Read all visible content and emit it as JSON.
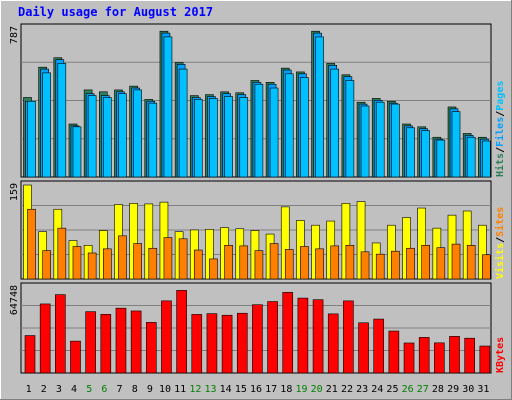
{
  "title": "Daily usage for August 2017",
  "colors": {
    "panel_bg": "#c0c0c0",
    "chart_bg": "#c0c0c0",
    "title": "#0000ff",
    "hits": "#2e7d5b",
    "files": "#00a0ff",
    "pages": "#00c0ff",
    "visits": "#ff8000",
    "sites": "#ffff00",
    "kbytes": "#ff0000",
    "weekday_label": "#000000",
    "weekend_label": "#008000"
  },
  "chart_data": [
    {
      "type": "bar",
      "name": "hits-files-pages",
      "ymax_label": "787",
      "legend": [
        {
          "text": "Hits",
          "color": "#2e7d5b"
        },
        {
          "text": "/",
          "color": "#000000"
        },
        {
          "text": "Files",
          "color": "#00a0ff"
        },
        {
          "text": "/",
          "color": "#000000"
        },
        {
          "text": "Pages",
          "color": "#00c0ff"
        }
      ],
      "ylim": [
        0,
        787
      ],
      "categories": [
        "1",
        "2",
        "3",
        "4",
        "5",
        "6",
        "7",
        "8",
        "9",
        "10",
        "11",
        "12",
        "13",
        "14",
        "15",
        "16",
        "17",
        "18",
        "19",
        "20",
        "21",
        "22",
        "23",
        "24",
        "25",
        "26",
        "27",
        "28",
        "29",
        "30",
        "31"
      ],
      "weekend": [
        5,
        6,
        12,
        13,
        19,
        20,
        26,
        27
      ],
      "series": [
        {
          "name": "Hits",
          "values": [
            420,
            580,
            630,
            280,
            460,
            450,
            460,
            480,
            410,
            770,
            605,
            430,
            435,
            450,
            445,
            510,
            500,
            575,
            555,
            770,
            600,
            540,
            395,
            415,
            400,
            280,
            265,
            210,
            370,
            230,
            210
          ],
          "color": "#2e7d5b"
        },
        {
          "name": "Files",
          "values": [
            400,
            570,
            620,
            270,
            440,
            430,
            450,
            470,
            400,
            760,
            595,
            420,
            425,
            440,
            435,
            500,
            490,
            565,
            545,
            760,
            590,
            530,
            385,
            405,
            390,
            270,
            255,
            200,
            360,
            220,
            200
          ],
          "color": "#00a0ff"
        },
        {
          "name": "Pages",
          "values": [
            400,
            550,
            600,
            265,
            430,
            420,
            440,
            460,
            390,
            740,
            570,
            410,
            415,
            425,
            420,
            490,
            470,
            545,
            525,
            740,
            570,
            510,
            375,
            395,
            385,
            260,
            245,
            195,
            345,
            210,
            190
          ],
          "color": "#00c0ff"
        }
      ]
    },
    {
      "type": "bar",
      "name": "visits-sites",
      "ymax_label": "159",
      "legend": [
        {
          "text": "Visits",
          "color": "#ffff00"
        },
        {
          "text": "/",
          "color": "#000000"
        },
        {
          "text": "Sites",
          "color": "#ff8000"
        }
      ],
      "ylim": [
        0,
        159
      ],
      "categories": [
        "1",
        "2",
        "3",
        "4",
        "5",
        "6",
        "7",
        "8",
        "9",
        "10",
        "11",
        "12",
        "13",
        "14",
        "15",
        "16",
        "17",
        "18",
        "19",
        "20",
        "21",
        "22",
        "23",
        "24",
        "25",
        "26",
        "27",
        "28",
        "29",
        "30",
        "31"
      ],
      "weekend": [
        5,
        6,
        12,
        13,
        19,
        20,
        26,
        27
      ],
      "series": [
        {
          "name": "Visits",
          "values": [
            159,
            80,
            118,
            65,
            57,
            82,
            126,
            128,
            127,
            130,
            80,
            83,
            84,
            87,
            85,
            82,
            76,
            122,
            99,
            91,
            98,
            128,
            131,
            61,
            91,
            104,
            120,
            86,
            108,
            115,
            91
          ],
          "color": "#ffff00"
        },
        {
          "name": "Sites",
          "values": [
            118,
            48,
            86,
            55,
            44,
            51,
            73,
            60,
            52,
            70,
            68,
            49,
            34,
            57,
            56,
            48,
            60,
            50,
            55,
            51,
            56,
            57,
            46,
            42,
            47,
            52,
            57,
            53,
            59,
            57,
            41
          ],
          "color": "#ff8000"
        }
      ]
    },
    {
      "type": "bar",
      "name": "kbytes",
      "ymax_label": "64748",
      "legend": [
        {
          "text": "KBytes",
          "color": "#ff0000"
        }
      ],
      "ylim": [
        0,
        64748
      ],
      "categories": [
        "1",
        "2",
        "3",
        "4",
        "5",
        "6",
        "7",
        "8",
        "9",
        "10",
        "11",
        "12",
        "13",
        "14",
        "15",
        "16",
        "17",
        "18",
        "19",
        "20",
        "21",
        "22",
        "23",
        "24",
        "25",
        "26",
        "27",
        "28",
        "29",
        "30",
        "31"
      ],
      "weekend": [
        5,
        6,
        12,
        13,
        19,
        20,
        26,
        27
      ],
      "series": [
        {
          "name": "KBytes",
          "values": [
            28200,
            52000,
            59000,
            24000,
            46200,
            44200,
            48800,
            46700,
            38100,
            54300,
            62200,
            44100,
            44700,
            43500,
            45000,
            51400,
            53800,
            60700,
            56400,
            55200,
            44500,
            54300,
            37800,
            40600,
            31600,
            22600,
            26800,
            22700,
            27600,
            26200,
            20300
          ],
          "color": "#ff0000"
        }
      ]
    }
  ]
}
